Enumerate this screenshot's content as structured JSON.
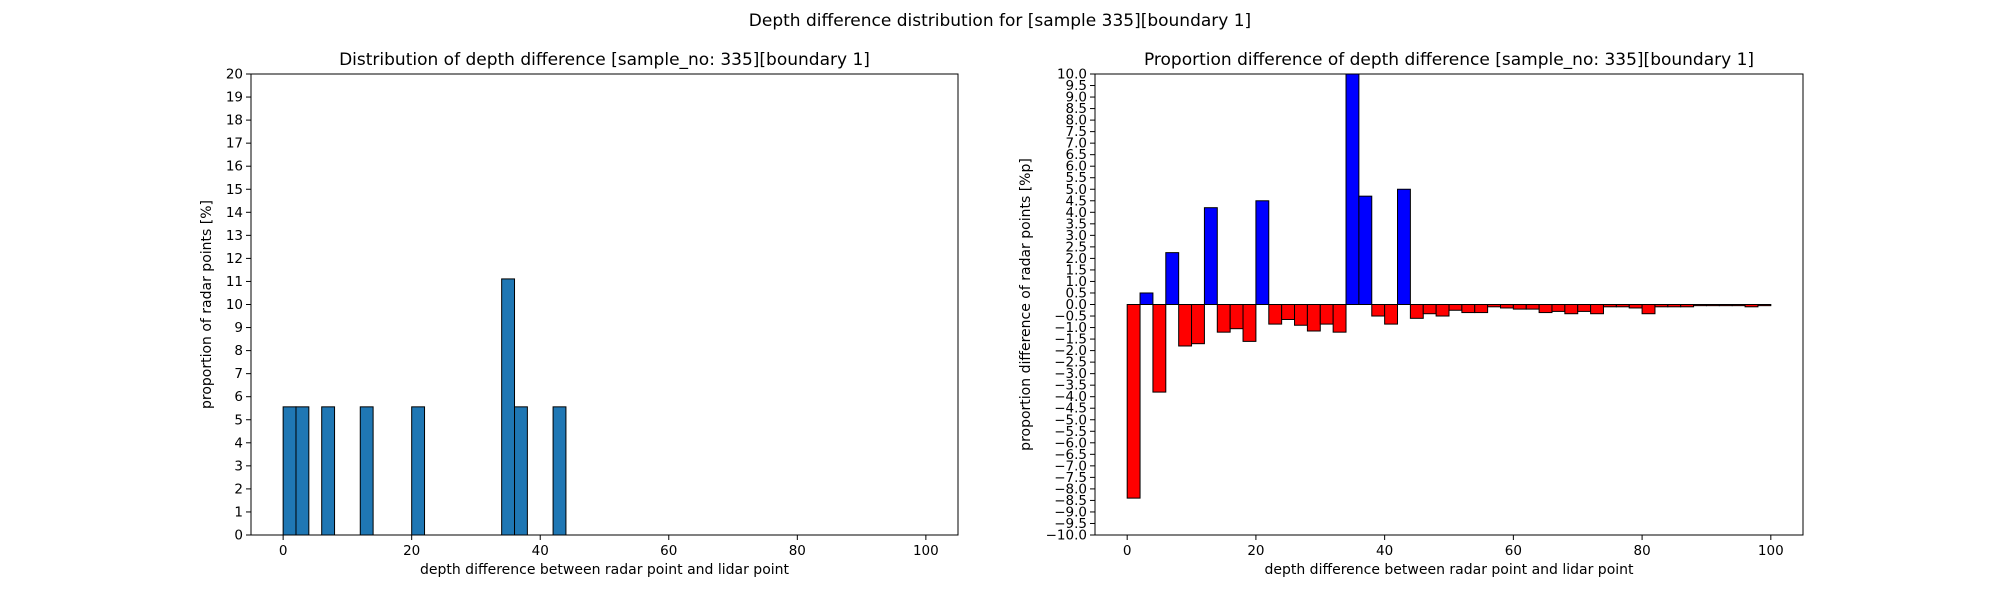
{
  "figure": {
    "suptitle": "Depth difference distribution for [sample 335][boundary 1]"
  },
  "chart_data": [
    {
      "type": "bar",
      "title": "Distribution of depth difference [sample_no: 335][boundary 1]",
      "xlabel": "depth difference between radar point and lidar point",
      "ylabel": "proportion of radar points [%]",
      "xlim": [
        -5,
        105
      ],
      "ylim": [
        0,
        20
      ],
      "xticks": [
        0,
        20,
        40,
        60,
        80,
        100
      ],
      "yticks": [
        0,
        1,
        2,
        3,
        4,
        5,
        6,
        7,
        8,
        9,
        10,
        11,
        12,
        13,
        14,
        15,
        16,
        17,
        18,
        19,
        20
      ],
      "bin_width": 2,
      "colors": {
        "bar": "#1f77b4",
        "edge": "#000000"
      },
      "bins": [
        {
          "x": 0,
          "value": 5.56
        },
        {
          "x": 2,
          "value": 5.56
        },
        {
          "x": 6,
          "value": 5.56
        },
        {
          "x": 12,
          "value": 5.56
        },
        {
          "x": 20,
          "value": 5.56
        },
        {
          "x": 34,
          "value": 11.11
        },
        {
          "x": 36,
          "value": 5.56
        },
        {
          "x": 42,
          "value": 5.56
        }
      ]
    },
    {
      "type": "bar",
      "title": "Proportion difference of depth difference [sample_no: 335][boundary 1]",
      "xlabel": "depth difference between radar point and lidar point",
      "ylabel": "proportion difference of radar points [%p]",
      "xlim": [
        -5,
        105
      ],
      "ylim": [
        -10,
        10
      ],
      "xticks": [
        0,
        20,
        40,
        60,
        80,
        100
      ],
      "yticks": [
        "10.0",
        "9.5",
        "9.0",
        "8.5",
        "8.0",
        "7.5",
        "7.0",
        "6.5",
        "6.0",
        "5.5",
        "5.0",
        "4.5",
        "4.0",
        "3.5",
        "3.0",
        "2.5",
        "2.0",
        "1.5",
        "1.0",
        "0.5",
        "0.0",
        "−0.5",
        "−1.0",
        "−1.5",
        "−2.0",
        "−2.5",
        "−3.0",
        "−3.5",
        "−4.0",
        "−4.5",
        "−5.0",
        "−5.5",
        "−6.0",
        "−6.5",
        "−7.0",
        "−7.5",
        "−8.0",
        "−8.5",
        "−9.0",
        "−9.5",
        "−10.0"
      ],
      "bin_width": 2,
      "colors": {
        "positive": "#0000ff",
        "negative": "#ff0000",
        "edge": "#000000"
      },
      "bins": [
        {
          "x": 0,
          "value": -8.4
        },
        {
          "x": 2,
          "value": 0.5
        },
        {
          "x": 4,
          "value": -3.8
        },
        {
          "x": 6,
          "value": 2.25
        },
        {
          "x": 8,
          "value": -1.8
        },
        {
          "x": 10,
          "value": -1.7
        },
        {
          "x": 12,
          "value": 4.2
        },
        {
          "x": 14,
          "value": -1.2
        },
        {
          "x": 16,
          "value": -1.05
        },
        {
          "x": 18,
          "value": -1.6
        },
        {
          "x": 20,
          "value": 4.5
        },
        {
          "x": 22,
          "value": -0.85
        },
        {
          "x": 24,
          "value": -0.65
        },
        {
          "x": 26,
          "value": -0.9
        },
        {
          "x": 28,
          "value": -1.15
        },
        {
          "x": 30,
          "value": -0.85
        },
        {
          "x": 32,
          "value": -1.2
        },
        {
          "x": 34,
          "value": 10.0
        },
        {
          "x": 36,
          "value": 4.7
        },
        {
          "x": 38,
          "value": -0.5
        },
        {
          "x": 40,
          "value": -0.85
        },
        {
          "x": 42,
          "value": 5.0
        },
        {
          "x": 44,
          "value": -0.6
        },
        {
          "x": 46,
          "value": -0.4
        },
        {
          "x": 48,
          "value": -0.5
        },
        {
          "x": 50,
          "value": -0.25
        },
        {
          "x": 52,
          "value": -0.35
        },
        {
          "x": 54,
          "value": -0.35
        },
        {
          "x": 56,
          "value": -0.1
        },
        {
          "x": 58,
          "value": -0.15
        },
        {
          "x": 60,
          "value": -0.2
        },
        {
          "x": 62,
          "value": -0.2
        },
        {
          "x": 64,
          "value": -0.35
        },
        {
          "x": 66,
          "value": -0.3
        },
        {
          "x": 68,
          "value": -0.4
        },
        {
          "x": 70,
          "value": -0.3
        },
        {
          "x": 72,
          "value": -0.4
        },
        {
          "x": 74,
          "value": -0.1
        },
        {
          "x": 76,
          "value": -0.1
        },
        {
          "x": 78,
          "value": -0.15
        },
        {
          "x": 80,
          "value": -0.4
        },
        {
          "x": 82,
          "value": -0.1
        },
        {
          "x": 84,
          "value": -0.1
        },
        {
          "x": 86,
          "value": -0.1
        },
        {
          "x": 88,
          "value": -0.05
        },
        {
          "x": 90,
          "value": -0.05
        },
        {
          "x": 92,
          "value": -0.05
        },
        {
          "x": 94,
          "value": -0.05
        },
        {
          "x": 96,
          "value": -0.1
        },
        {
          "x": 98,
          "value": -0.05
        }
      ]
    }
  ]
}
